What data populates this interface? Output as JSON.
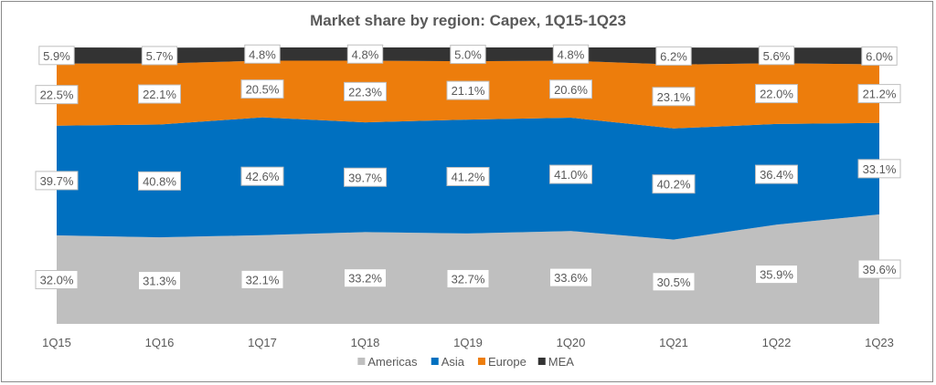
{
  "chart_data": {
    "type": "area",
    "stacked": true,
    "title": "Market share by region: Capex, 1Q15-1Q23",
    "xlabel": "",
    "ylabel": "",
    "ylim": [
      0,
      100
    ],
    "grid": false,
    "legend_position": "bottom",
    "categories": [
      "1Q15",
      "1Q16",
      "1Q17",
      "1Q18",
      "1Q19",
      "1Q20",
      "1Q21",
      "1Q22",
      "1Q23"
    ],
    "series": [
      {
        "name": "Americas",
        "color": "#BFBFBF",
        "values": [
          32.0,
          31.3,
          32.1,
          33.2,
          32.7,
          33.6,
          30.5,
          35.9,
          39.6
        ]
      },
      {
        "name": "Asia",
        "color": "#0070C0",
        "values": [
          39.7,
          40.8,
          42.6,
          39.7,
          41.2,
          41.0,
          40.2,
          36.4,
          33.1
        ]
      },
      {
        "name": "Europe",
        "color": "#ED7D0C",
        "values": [
          22.5,
          22.1,
          20.5,
          22.3,
          21.1,
          20.6,
          23.1,
          22.0,
          21.2
        ]
      },
      {
        "name": "MEA",
        "color": "#333333",
        "values": [
          5.9,
          5.7,
          4.8,
          4.8,
          5.0,
          4.8,
          6.2,
          5.6,
          6.0
        ]
      }
    ],
    "value_suffix": "%"
  }
}
